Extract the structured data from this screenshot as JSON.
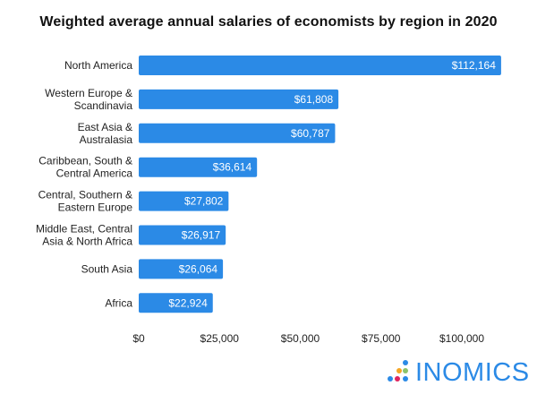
{
  "chart_data": {
    "type": "bar",
    "orientation": "horizontal",
    "title": "Weighted average annual salaries of economists by region in 2020",
    "categories": [
      [
        "North America"
      ],
      [
        "Western Europe &",
        "Scandinavia"
      ],
      [
        "East Asia &",
        "Australasia"
      ],
      [
        "Caribbean, South &",
        "Central America"
      ],
      [
        "Central, Southern &",
        "Eastern Europe"
      ],
      [
        "Middle East, Central",
        "Asia & North Africa"
      ],
      [
        "South Asia"
      ],
      [
        "Africa"
      ]
    ],
    "values": [
      112164,
      61808,
      60787,
      36614,
      27802,
      26917,
      26064,
      22924
    ],
    "data_labels": [
      "$112,164",
      "$61,808",
      "$60,787",
      "$36,614",
      "$27,802",
      "$26,917",
      "$26,064",
      "$22,924"
    ],
    "xticks": [
      0,
      25000,
      50000,
      75000,
      100000
    ],
    "xtick_labels": [
      "$0",
      "$25,000",
      "$50,000",
      "$75,000",
      "$100,000"
    ],
    "xlim": [
      0,
      112164
    ],
    "grid": false,
    "bar_color": "#2b8ae6"
  },
  "logo": {
    "text": "INOMICS",
    "color": "#2b8ae6"
  }
}
